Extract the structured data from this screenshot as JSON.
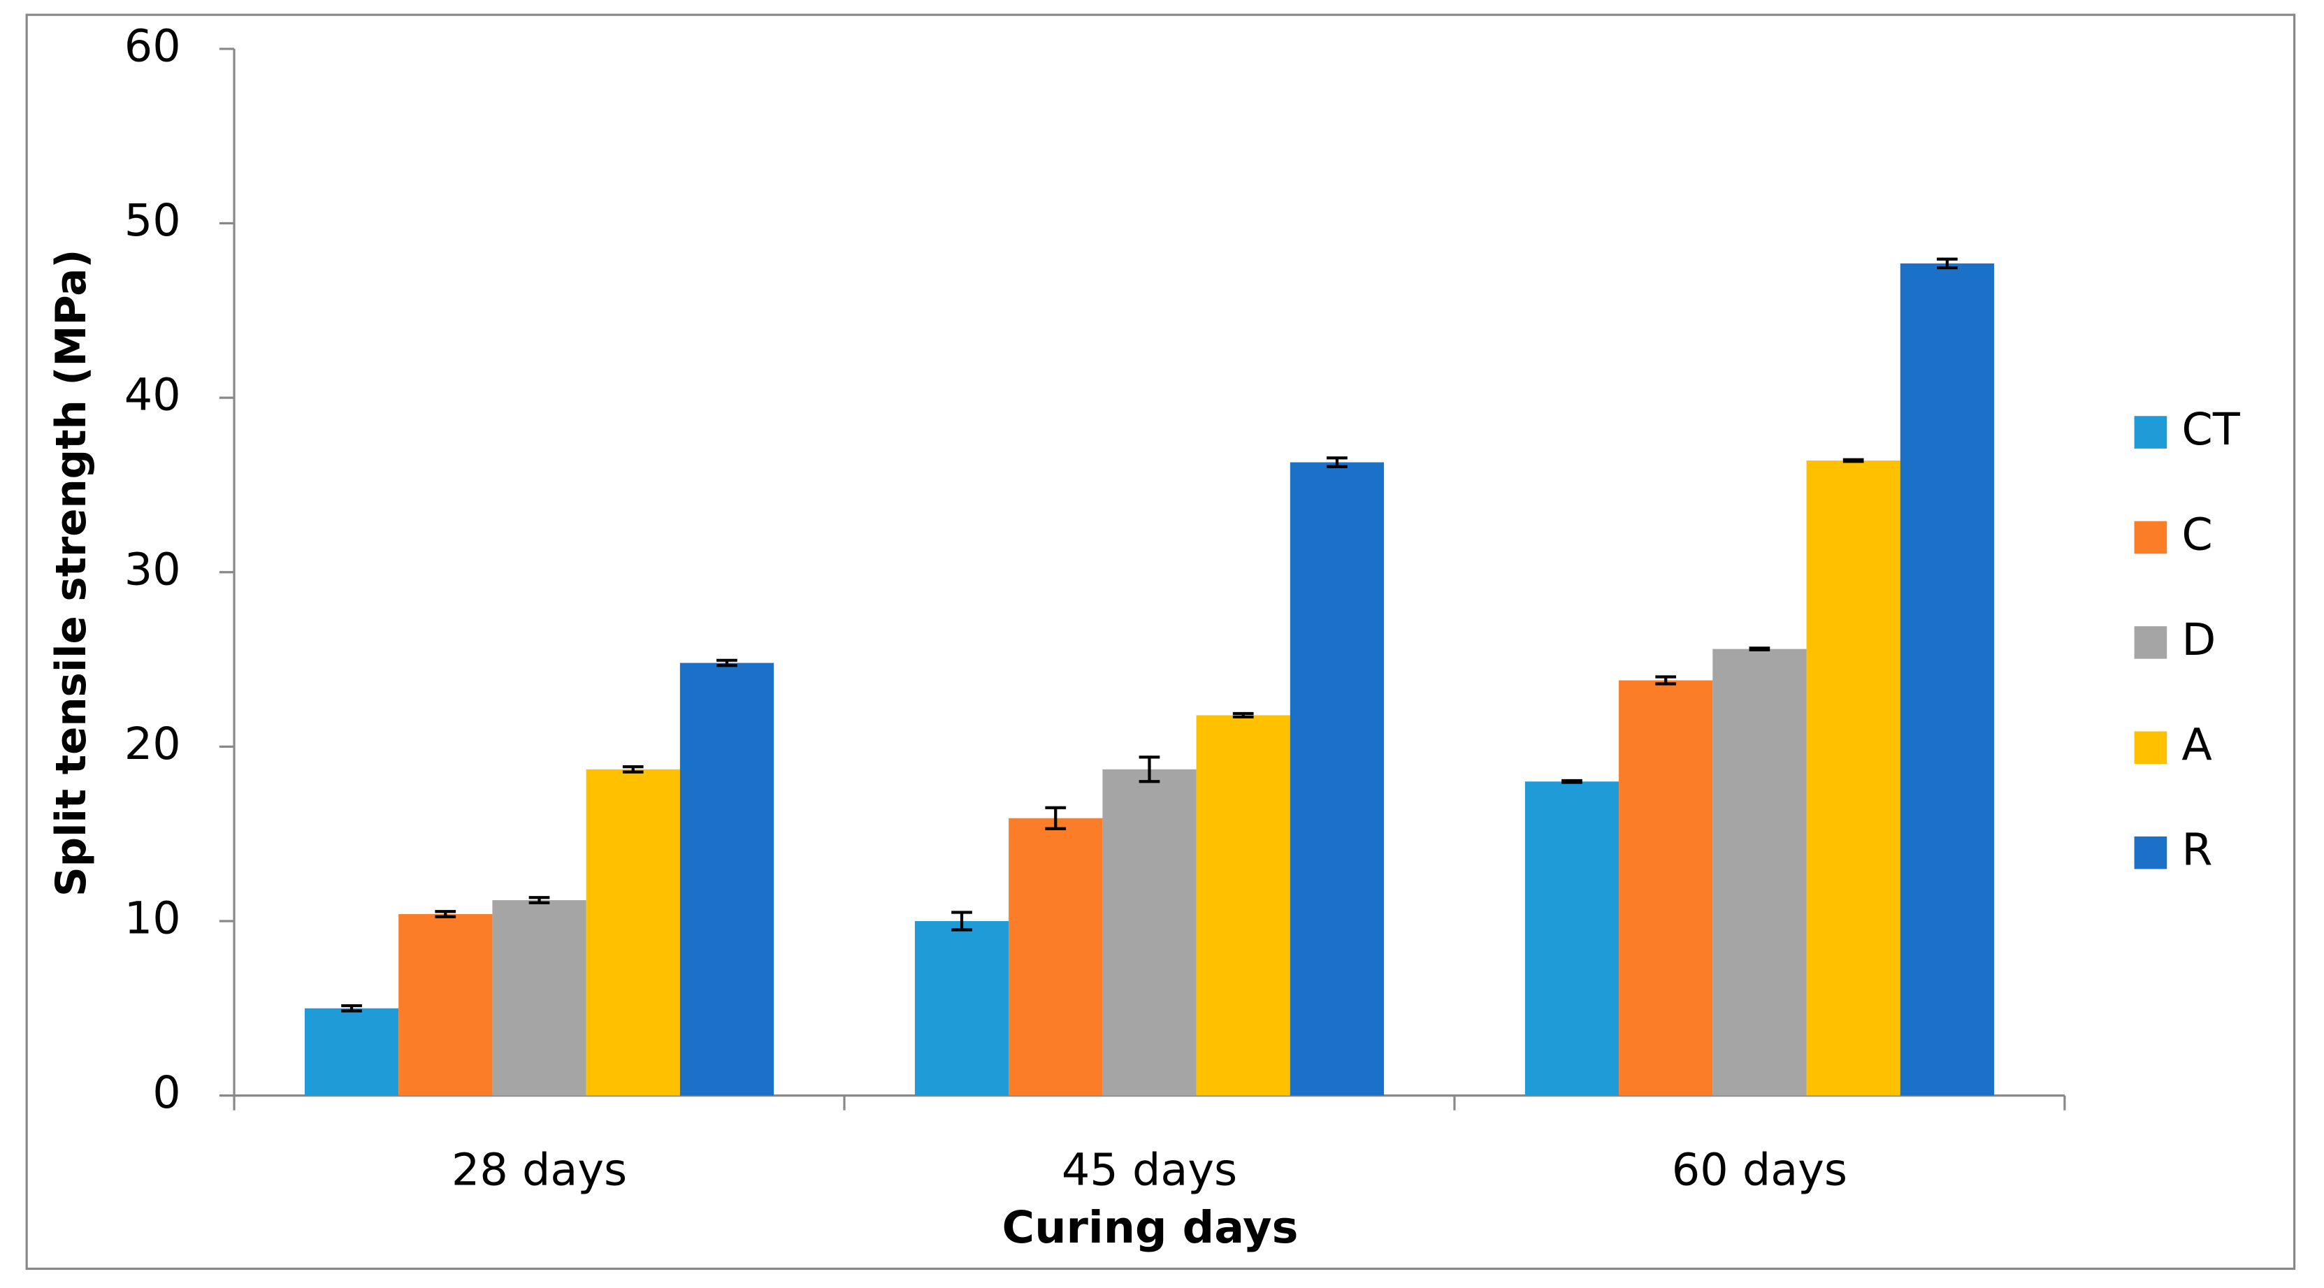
{
  "chart_data": {
    "type": "bar",
    "x_label": "Curing days",
    "y_label": "Split tensile strength (MPa)",
    "categories": [
      "28 days",
      "45 days",
      "60 days"
    ],
    "series": [
      {
        "name": "CT",
        "color": "#1f9bd7",
        "values": [
          5.0,
          10.0,
          18.0
        ],
        "errors": [
          0.15,
          0.5,
          0.05
        ]
      },
      {
        "name": "C",
        "color": "#fb7d28",
        "values": [
          10.4,
          15.9,
          23.8
        ],
        "errors": [
          0.15,
          0.6,
          0.2
        ]
      },
      {
        "name": "D",
        "color": "#a5a5a5",
        "values": [
          11.2,
          18.7,
          25.6
        ],
        "errors": [
          0.15,
          0.7,
          0.05
        ]
      },
      {
        "name": "A",
        "color": "#ffc000",
        "values": [
          18.7,
          21.8,
          36.4
        ],
        "errors": [
          0.15,
          0.1,
          0.05
        ]
      },
      {
        "name": "R",
        "color": "#1b70c8",
        "values": [
          24.8,
          36.3,
          47.7
        ],
        "errors": [
          0.15,
          0.25,
          0.25
        ]
      }
    ],
    "ylim": [
      0,
      60
    ],
    "yticks": [
      0,
      10,
      20,
      30,
      40,
      50,
      60
    ],
    "legend": "right"
  }
}
